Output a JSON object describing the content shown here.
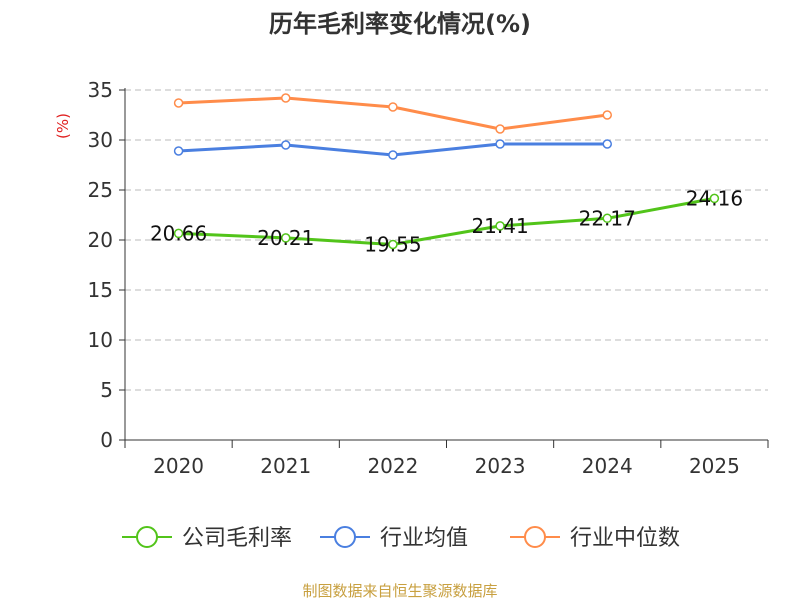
{
  "chart_data": {
    "type": "line",
    "title": "历年毛利率变化情况(%)",
    "ylabel": "(%)",
    "xlabel": "",
    "ylim": [
      0,
      35
    ],
    "yticks": [
      0,
      5,
      10,
      15,
      20,
      25,
      30,
      35
    ],
    "categories": [
      "2020",
      "2021",
      "2022",
      "2023",
      "2024",
      "2025"
    ],
    "grid": true,
    "legend_position": "bottom",
    "series": [
      {
        "name": "公司毛利率",
        "color": "#52c41a",
        "values": [
          20.66,
          20.21,
          19.55,
          21.41,
          22.17,
          24.16
        ],
        "labels": [
          "20.66",
          "20.21",
          "19.55",
          "21.41",
          "22.17",
          "24.16"
        ]
      },
      {
        "name": "行业均值",
        "color": "#4a7fe0",
        "values": [
          28.9,
          29.5,
          28.5,
          29.6,
          29.6,
          null
        ]
      },
      {
        "name": "行业中位数",
        "color": "#ff8c4a",
        "values": [
          33.7,
          34.2,
          33.3,
          31.1,
          32.5,
          null
        ]
      }
    ]
  },
  "source": "制图数据来自恒生聚源数据库"
}
